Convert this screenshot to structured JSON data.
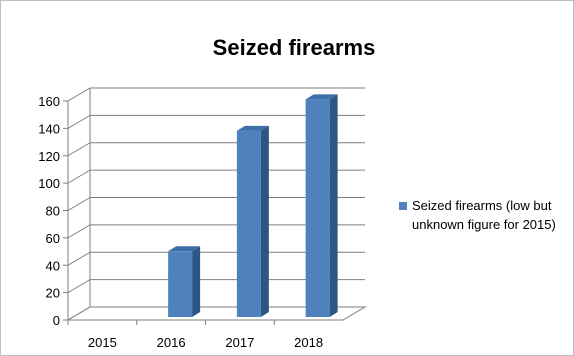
{
  "chart_data": {
    "type": "bar",
    "title": "Seized firearms",
    "categories": [
      "2015",
      "2016",
      "2017",
      "2018"
    ],
    "series": [
      {
        "name": "Seized firearms (low but unknown figure for 2015)",
        "legend_lines": [
          "Seized firearms (low but",
          "unknown figure for 2015)"
        ],
        "values": [
          0,
          48,
          136,
          159
        ]
      }
    ],
    "ylim": [
      0,
      160
    ],
    "yticks": [
      "0",
      "20",
      "40",
      "60",
      "80",
      "100",
      "120",
      "140",
      "160"
    ],
    "grid": true,
    "legend_position": "right",
    "colors": {
      "bar_front": "#4f81bd",
      "bar_side": "#2c5684",
      "bar_top": "#3d6ea8",
      "grid": "#7f7f7f",
      "text": "#000000"
    }
  }
}
